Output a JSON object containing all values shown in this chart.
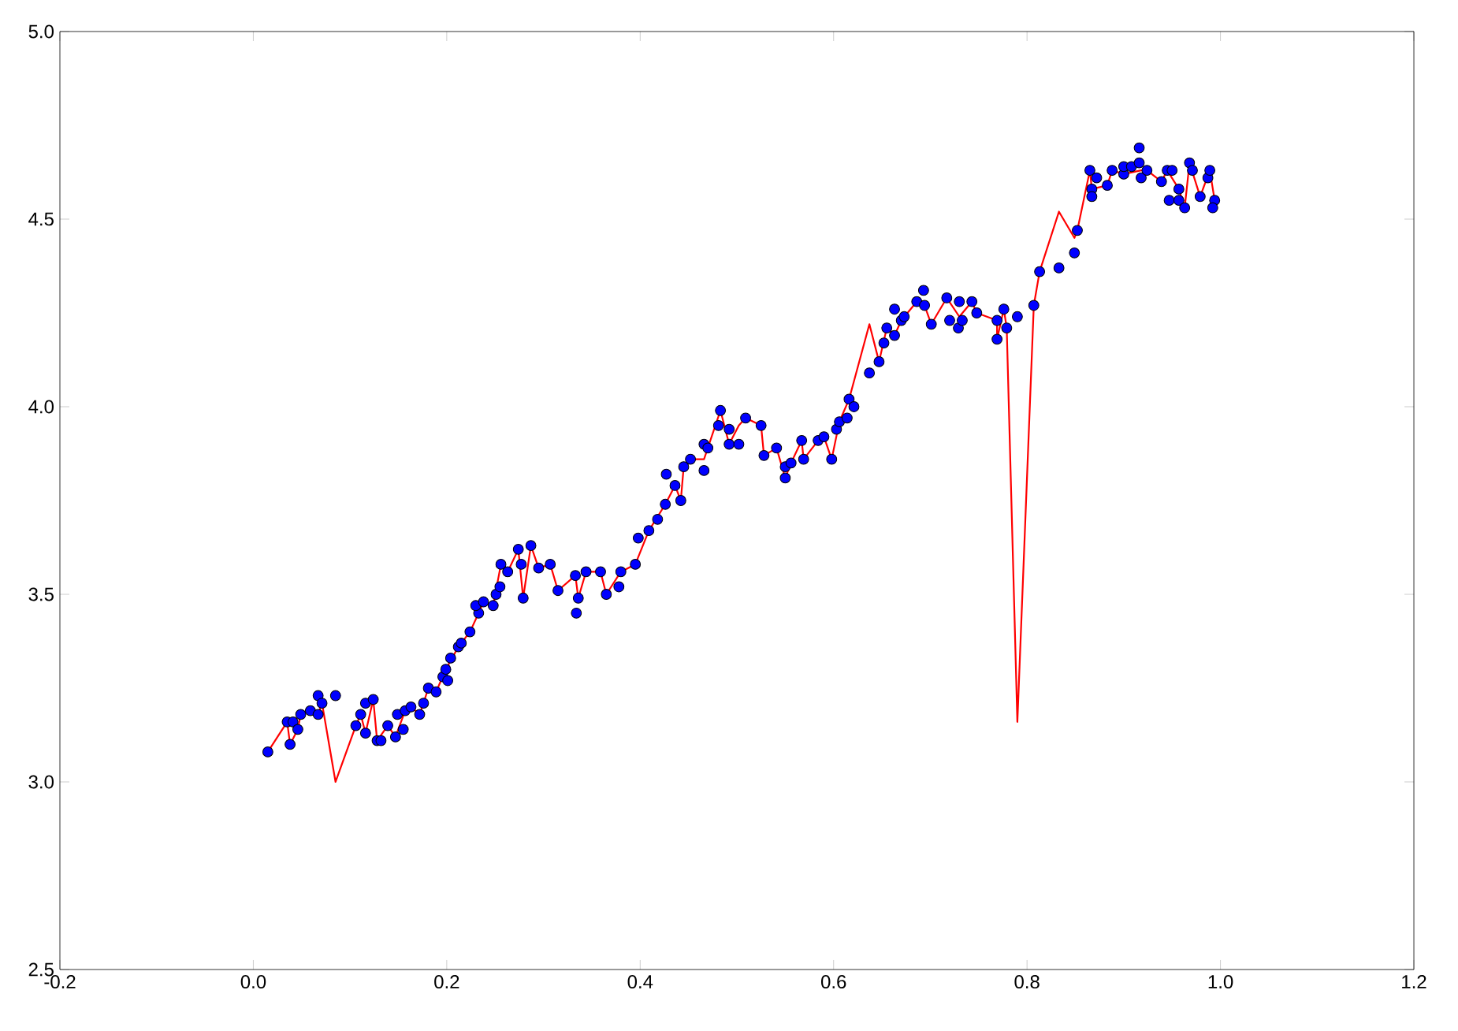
{
  "chart_data": {
    "type": "scatter",
    "xlim": [
      -0.2,
      1.2
    ],
    "ylim": [
      2.5,
      5.0
    ],
    "xticks": [
      -0.2,
      {
        "value": 0,
        "label": "0.0"
      },
      0.2,
      0.4,
      0.6,
      0.8,
      {
        "value": 1,
        "label": "1.0"
      },
      1.2
    ],
    "yticks": [
      2.5,
      {
        "value": 3,
        "label": "3.0"
      },
      3.5,
      {
        "value": 4,
        "label": "4.0"
      },
      4.5,
      {
        "value": 5,
        "label": "5.0"
      }
    ],
    "series": [
      {
        "type": "line",
        "color": "#ff0000",
        "marker": "none",
        "line_style": "solid",
        "x": [
          0.015,
          0.035,
          0.038,
          0.046,
          0.049,
          0.059,
          0.067,
          0.071,
          0.085,
          0.106,
          0.111,
          0.116,
          0.124,
          0.128,
          0.139,
          0.147,
          0.157,
          0.163,
          0.172,
          0.181,
          0.189,
          0.199,
          0.212,
          0.224,
          0.233,
          0.238,
          0.248,
          0.256,
          0.263,
          0.274,
          0.279,
          0.287,
          0.295,
          0.307,
          0.315,
          0.333,
          0.336,
          0.344,
          0.359,
          0.365,
          0.38,
          0.395,
          0.409,
          0.426,
          0.436,
          0.442,
          0.445,
          0.452,
          0.466,
          0.483,
          0.492,
          0.502,
          0.509,
          0.525,
          0.528,
          0.541,
          0.55,
          0.556,
          0.567,
          0.569,
          0.584,
          0.59,
          0.598,
          0.606,
          0.616,
          0.637,
          0.647,
          0.655,
          0.663,
          0.67,
          0.686,
          0.694,
          0.701,
          0.717,
          0.73,
          0.743,
          0.748,
          0.769,
          0.769,
          0.776,
          0.779,
          0.79,
          0.807,
          0.813,
          0.833,
          0.849,
          0.852,
          0.865,
          0.867,
          0.883,
          0.888,
          0.9,
          0.918,
          0.924,
          0.939,
          0.945,
          0.957,
          0.963,
          0.968,
          0.979,
          0.989,
          0.994
        ],
        "values": [
          3.08,
          3.16,
          3.1,
          3.14,
          3.18,
          3.19,
          3.18,
          3.21,
          3.0,
          3.15,
          3.18,
          3.13,
          3.22,
          3.11,
          3.15,
          3.12,
          3.19,
          3.2,
          3.18,
          3.25,
          3.24,
          3.3,
          3.36,
          3.4,
          3.45,
          3.48,
          3.47,
          3.58,
          3.56,
          3.62,
          3.49,
          3.63,
          3.57,
          3.58,
          3.51,
          3.55,
          3.49,
          3.56,
          3.56,
          3.5,
          3.56,
          3.58,
          3.67,
          3.74,
          3.79,
          3.75,
          3.84,
          3.86,
          3.86,
          3.99,
          3.9,
          3.95,
          3.97,
          3.95,
          3.87,
          3.89,
          3.81,
          3.85,
          3.91,
          3.86,
          3.91,
          3.92,
          3.86,
          3.96,
          4.02,
          4.22,
          4.12,
          4.21,
          4.19,
          4.23,
          4.28,
          4.27,
          4.22,
          4.29,
          4.24,
          4.28,
          4.25,
          4.23,
          4.18,
          4.26,
          4.21,
          3.16,
          4.27,
          4.36,
          4.52,
          4.45,
          4.47,
          4.63,
          4.58,
          4.59,
          4.63,
          4.62,
          4.63,
          4.63,
          4.6,
          4.63,
          4.58,
          4.53,
          4.65,
          4.56,
          4.63,
          4.55
        ]
      },
      {
        "type": "scatter",
        "color": "#0000ff",
        "marker": "circle",
        "x": [
          0.015,
          0.035,
          0.038,
          0.041,
          0.046,
          0.049,
          0.059,
          0.067,
          0.067,
          0.071,
          0.085,
          0.106,
          0.111,
          0.116,
          0.116,
          0.124,
          0.128,
          0.132,
          0.139,
          0.147,
          0.149,
          0.155,
          0.157,
          0.163,
          0.172,
          0.176,
          0.181,
          0.189,
          0.196,
          0.201,
          0.199,
          0.204,
          0.212,
          0.215,
          0.224,
          0.233,
          0.23,
          0.238,
          0.248,
          0.251,
          0.255,
          0.256,
          0.263,
          0.274,
          0.277,
          0.279,
          0.287,
          0.295,
          0.307,
          0.315,
          0.333,
          0.336,
          0.334,
          0.344,
          0.359,
          0.365,
          0.378,
          0.38,
          0.395,
          0.398,
          0.409,
          0.418,
          0.426,
          0.427,
          0.436,
          0.442,
          0.445,
          0.452,
          0.466,
          0.466,
          0.47,
          0.483,
          0.481,
          0.492,
          0.492,
          0.502,
          0.509,
          0.525,
          0.528,
          0.541,
          0.55,
          0.55,
          0.556,
          0.567,
          0.569,
          0.584,
          0.59,
          0.598,
          0.603,
          0.606,
          0.614,
          0.616,
          0.621,
          0.637,
          0.647,
          0.652,
          0.655,
          0.663,
          0.663,
          0.67,
          0.673,
          0.686,
          0.693,
          0.694,
          0.701,
          0.717,
          0.72,
          0.73,
          0.729,
          0.733,
          0.743,
          0.748,
          0.769,
          0.769,
          0.776,
          0.779,
          0.79,
          0.807,
          0.813,
          0.833,
          0.849,
          0.852,
          0.865,
          0.867,
          0.867,
          0.872,
          0.883,
          0.888,
          0.9,
          0.9,
          0.908,
          0.916,
          0.916,
          0.918,
          0.924,
          0.939,
          0.945,
          0.947,
          0.95,
          0.957,
          0.957,
          0.963,
          0.968,
          0.971,
          0.979,
          0.987,
          0.989,
          0.994,
          0.992
        ],
        "values": [
          3.08,
          3.16,
          3.1,
          3.16,
          3.14,
          3.18,
          3.19,
          3.23,
          3.18,
          3.21,
          3.23,
          3.15,
          3.18,
          3.21,
          3.13,
          3.22,
          3.11,
          3.11,
          3.15,
          3.12,
          3.18,
          3.14,
          3.19,
          3.2,
          3.18,
          3.21,
          3.25,
          3.24,
          3.28,
          3.27,
          3.3,
          3.33,
          3.36,
          3.37,
          3.4,
          3.45,
          3.47,
          3.48,
          3.47,
          3.5,
          3.52,
          3.58,
          3.56,
          3.62,
          3.58,
          3.49,
          3.63,
          3.57,
          3.58,
          3.51,
          3.55,
          3.49,
          3.45,
          3.56,
          3.56,
          3.5,
          3.52,
          3.56,
          3.58,
          3.65,
          3.67,
          3.7,
          3.74,
          3.82,
          3.79,
          3.75,
          3.84,
          3.86,
          3.83,
          3.9,
          3.89,
          3.99,
          3.95,
          3.9,
          3.94,
          3.9,
          3.97,
          3.95,
          3.87,
          3.89,
          3.81,
          3.84,
          3.85,
          3.91,
          3.86,
          3.91,
          3.92,
          3.86,
          3.94,
          3.96,
          3.97,
          4.02,
          4.0,
          4.09,
          4.12,
          4.17,
          4.21,
          4.19,
          4.26,
          4.23,
          4.24,
          4.28,
          4.31,
          4.27,
          4.22,
          4.29,
          4.23,
          4.28,
          4.21,
          4.23,
          4.28,
          4.25,
          4.23,
          4.18,
          4.26,
          4.21,
          4.24,
          4.27,
          4.36,
          4.37,
          4.41,
          4.47,
          4.63,
          4.58,
          4.56,
          4.61,
          4.59,
          4.63,
          4.62,
          4.64,
          4.64,
          4.69,
          4.65,
          4.61,
          4.63,
          4.6,
          4.63,
          4.55,
          4.63,
          4.58,
          4.55,
          4.53,
          4.65,
          4.63,
          4.56,
          4.61,
          4.63,
          4.55,
          4.53
        ]
      }
    ]
  }
}
